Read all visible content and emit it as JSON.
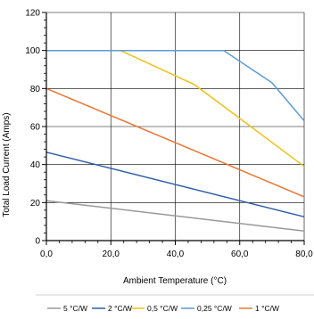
{
  "chart_data": {
    "type": "line",
    "xlabel": "Ambient Temperature (°C)",
    "ylabel": "Total Load Current (Amps)",
    "xlim": [
      0,
      80
    ],
    "ylim": [
      0,
      120
    ],
    "x_ticks": [
      "0,0",
      "20,0",
      "40,0",
      "60,0",
      "80,0"
    ],
    "y_ticks": [
      "0",
      "20",
      "40",
      "60",
      "80",
      "100",
      "120"
    ],
    "grid": true,
    "legend_position": "bottom",
    "series": [
      {
        "name": "5 °C/W",
        "color": "#999999",
        "points": [
          [
            0,
            21
          ],
          [
            80,
            5
          ]
        ]
      },
      {
        "name": "2 °C/W",
        "color": "#2e5da6",
        "points": [
          [
            0,
            46.5
          ],
          [
            80,
            12.5
          ]
        ]
      },
      {
        "name": "0,5 °C/W",
        "color": "#f2c015",
        "points": [
          [
            0,
            100
          ],
          [
            23,
            100
          ],
          [
            46,
            82
          ],
          [
            80,
            39
          ]
        ]
      },
      {
        "name": "0,25 °C/W",
        "color": "#5b9bd5",
        "points": [
          [
            0,
            100
          ],
          [
            55,
            100
          ],
          [
            70,
            83
          ],
          [
            80,
            63
          ]
        ]
      },
      {
        "name": "1 °C/W",
        "color": "#ec7432",
        "points": [
          [
            0,
            80
          ],
          [
            80,
            23
          ]
        ]
      }
    ]
  }
}
